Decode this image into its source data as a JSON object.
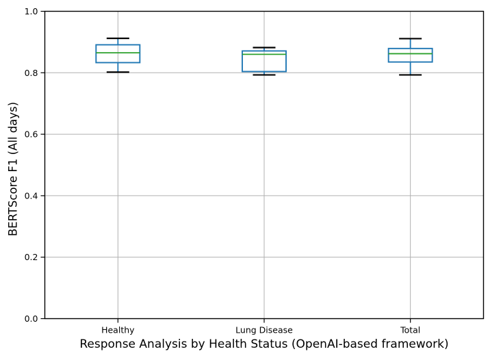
{
  "chart_data": {
    "type": "box",
    "title": "",
    "xlabel": "Response Analysis by Health Status (OpenAI-based framework)",
    "ylabel": "BERTScore F1 (All days)",
    "ylim": [
      0.0,
      1.0
    ],
    "ytick_values": [
      0.0,
      0.2,
      0.4,
      0.6,
      0.8,
      1.0
    ],
    "ytick_labels": [
      "0.0",
      "0.2",
      "0.4",
      "0.6",
      "0.8",
      "1.0"
    ],
    "grid": true,
    "legend_position": "none",
    "categories": [
      "Healthy",
      "Lung Disease",
      "Total"
    ],
    "boxes": [
      {
        "category": "Healthy",
        "whisker_low": 0.802,
        "q1": 0.833,
        "median": 0.865,
        "q3": 0.891,
        "whisker_high": 0.912
      },
      {
        "category": "Lung Disease",
        "whisker_low": 0.793,
        "q1": 0.804,
        "median": 0.86,
        "q3": 0.871,
        "whisker_high": 0.882
      },
      {
        "category": "Total",
        "whisker_low": 0.793,
        "q1": 0.835,
        "median": 0.862,
        "q3": 0.879,
        "whisker_high": 0.911
      }
    ],
    "colors": {
      "box": "#1f77b4",
      "whisker": "#1f77b4",
      "median": "#2ca02c",
      "cap": "#000000",
      "grid": "#b0b0b0",
      "spine": "#000000",
      "background": "#ffffff"
    }
  }
}
